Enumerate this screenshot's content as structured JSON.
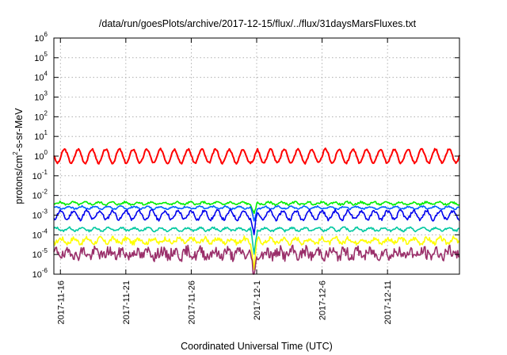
{
  "chart_data": {
    "type": "line",
    "title": "/data/run/goesPlots/archive/2017-12-15/flux/../flux/31daysMarsFluxes.txt",
    "xlabel": "Coordinated Universal Time (UTC)",
    "ylabel_parts": {
      "base": "protons/cm",
      "exp": "2",
      "rest": "-s-sr-MeV"
    },
    "yscale": "log",
    "ylim_exp": [
      -6,
      6
    ],
    "y_ticks": [
      {
        "base": "10",
        "exp": "-6",
        "value_exp": -6
      },
      {
        "base": "10",
        "exp": "-5",
        "value_exp": -5
      },
      {
        "base": "10",
        "exp": "-4",
        "value_exp": -4
      },
      {
        "base": "10",
        "exp": "-3",
        "value_exp": -3
      },
      {
        "base": "10",
        "exp": "-2",
        "value_exp": -2
      },
      {
        "base": "10",
        "exp": "-1",
        "value_exp": -1
      },
      {
        "base": "10",
        "exp": "0",
        "value_exp": 0
      },
      {
        "base": "10",
        "exp": "1",
        "value_exp": 1
      },
      {
        "base": "10",
        "exp": "2",
        "value_exp": 2
      },
      {
        "base": "10",
        "exp": "3",
        "value_exp": 3
      },
      {
        "base": "10",
        "exp": "4",
        "value_exp": 4
      },
      {
        "base": "10",
        "exp": "5",
        "value_exp": 5
      },
      {
        "base": "10",
        "exp": "6",
        "value_exp": 6
      }
    ],
    "xlim_days": [
      0,
      31
    ],
    "x_ticks": [
      {
        "label": "2017-11-16",
        "day": 0.5
      },
      {
        "label": "2017-11-21",
        "day": 5.5
      },
      {
        "label": "2017-11-26",
        "day": 10.5
      },
      {
        "label": "2017-12-1",
        "day": 15.5
      },
      {
        "label": "2017-12-6",
        "day": 20.5
      },
      {
        "label": "2017-12-11",
        "day": 25.5
      }
    ],
    "grid": true,
    "series": [
      {
        "color": "#ff0000",
        "base_log": 0.0,
        "amp": 0.35,
        "noise": 0.05,
        "period": 1.05,
        "dip_depth": 0.25,
        "seed": 3
      },
      {
        "color": "#00ee00",
        "base_log": -2.4,
        "amp": 0.06,
        "noise": 0.05,
        "period": 1.0,
        "dip_depth": 0.6,
        "seed": 5
      },
      {
        "color": "#0060ff",
        "base_log": -2.62,
        "amp": 0.06,
        "noise": 0.04,
        "period": 1.0,
        "dip_depth": 0.7,
        "seed": 7
      },
      {
        "color": "#0000ee",
        "base_log": -3.0,
        "amp": 0.22,
        "noise": 0.08,
        "period": 1.0,
        "dip_depth": 1.0,
        "seed": 11
      },
      {
        "color": "#00c8a0",
        "base_log": -3.72,
        "amp": 0.08,
        "noise": 0.05,
        "period": 1.0,
        "dip_depth": 1.3,
        "seed": 13
      },
      {
        "color": "#ffff00",
        "base_log": -4.3,
        "amp": 0.12,
        "noise": 0.12,
        "period": 1.0,
        "dip_depth": 1.4,
        "seed": 17
      },
      {
        "color": "#9a2f6a",
        "base_log": -4.95,
        "amp": 0.15,
        "noise": 0.28,
        "period": 1.0,
        "dip_depth": 1.4,
        "seed": 19
      }
    ],
    "dip_day": 15.3
  }
}
